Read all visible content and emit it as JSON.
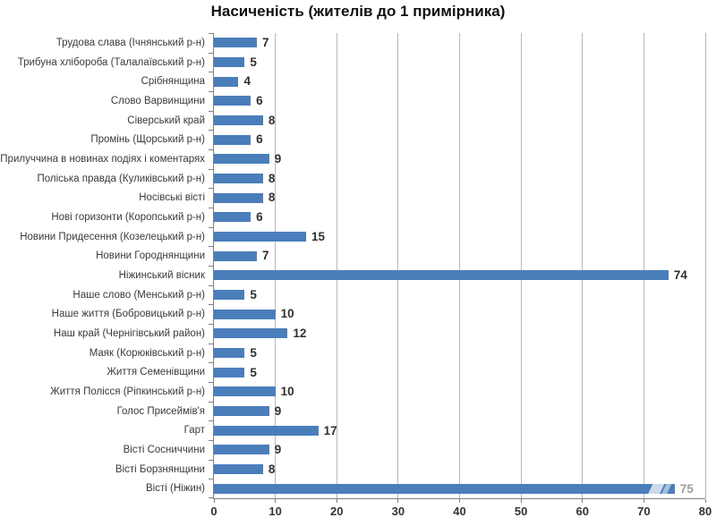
{
  "chart_data": {
    "type": "bar",
    "orientation": "horizontal",
    "title": "Насиченість (жителів до 1 примірника)",
    "categories": [
      "Трудова слава (Ічнянський р-н)",
      "Трибуна хлібороба (Талалаївський р-н)",
      "Срібнянщина",
      "Слово Варвинщини",
      "Сіверський край",
      "Промінь (Щорський р-н)",
      "Прилуччина в новинах подіях і коментарях",
      "Поліська правда (Куликівський р-н)",
      "Носівські вісті",
      "Нові горизонти (Коропський р-н)",
      "Новини Придесення (Козелецький р-н)",
      "Новини Городнянщини",
      "Ніжинський вісник",
      "Наше слово (Менський р-н)",
      "Наше життя (Бобровицький р-н)",
      "Наш край (Чернігівський район)",
      "Маяк (Корюківський р-н)",
      "Життя Семенівщини",
      "Життя Полісся (Ріпкинський р-н)",
      "Голос Присеймів'я",
      "Гарт",
      "Вісті Сосниччини",
      "Вісті Борзнянщини",
      "Вісті (Ніжин)"
    ],
    "values": [
      7,
      5,
      4,
      6,
      8,
      6,
      9,
      8,
      8,
      6,
      15,
      7,
      74,
      5,
      10,
      12,
      5,
      5,
      10,
      9,
      17,
      9,
      8,
      75
    ],
    "xlim": [
      0,
      80
    ],
    "xticks": [
      0,
      10,
      20,
      30,
      40,
      50,
      60,
      70,
      80
    ],
    "grid": "vertical",
    "legend": "none",
    "muted_value_index": 23
  },
  "colors": {
    "bar": "#4a7ebb",
    "grid": "#b8b8b8",
    "axis": "#808080",
    "title_text": "#111111",
    "category_text": "#3a3a3a",
    "value_text": "#303030",
    "muted_value_text": "#9b9b9b",
    "background": "#ffffff"
  }
}
